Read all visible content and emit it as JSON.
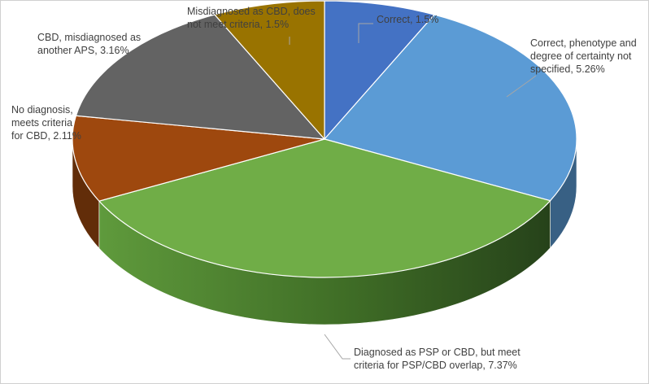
{
  "chart_data": {
    "type": "pie",
    "style": "3d-pie",
    "title": "",
    "legend": "none",
    "slices": [
      {
        "label": "Correct",
        "value": 1.5,
        "display": "Correct, 1.5%",
        "color": "#4472C4"
      },
      {
        "label": "Correct, phenotype and degree of certainty not specified",
        "value": 5.26,
        "display": "Correct, phenotype and degree of certainty not specified, 5.26%",
        "color": "#5B9BD5"
      },
      {
        "label": "Diagnosed as PSP or CBD, but meet criteria for PSP/CBD overlap",
        "value": 7.37,
        "display": "Diagnosed as PSP or CBD, but meet criteria for PSP/CBD overlap, 7.37%",
        "color": "#70AD47"
      },
      {
        "label": "No diagnosis, meets criteria for CBD",
        "value": 2.11,
        "display": "No diagnosis, meets criteria for CBD, 2.11%",
        "color": "#9E480E"
      },
      {
        "label": "CBD, misdiagnosed as another APS",
        "value": 3.16,
        "display": "CBD, misdiagnosed as another APS, 3.16%",
        "color": "#636363"
      },
      {
        "label": "Misdiagnosed as CBD, does not meet criteria",
        "value": 1.5,
        "display": "Misdiagnosed as CBD, does not meet criteria, 1.5%",
        "color": "#997300"
      }
    ],
    "label_lines": [
      [
        "Correct, 1.5%"
      ],
      [
        "Correct, phenotype and",
        "degree of certainty not",
        "specified, 5.26%"
      ],
      [
        "Diagnosed as PSP or CBD, but meet",
        "criteria for PSP/CBD overlap, 7.37%"
      ],
      [
        "No diagnosis,",
        "meets criteria",
        "for CBD, 2.11%"
      ],
      [
        "CBD, misdiagnosed as",
        "another APS, 3.16%"
      ],
      [
        "Misdiagnosed as CBD, does",
        "not meet criteria, 1.5%"
      ]
    ]
  }
}
